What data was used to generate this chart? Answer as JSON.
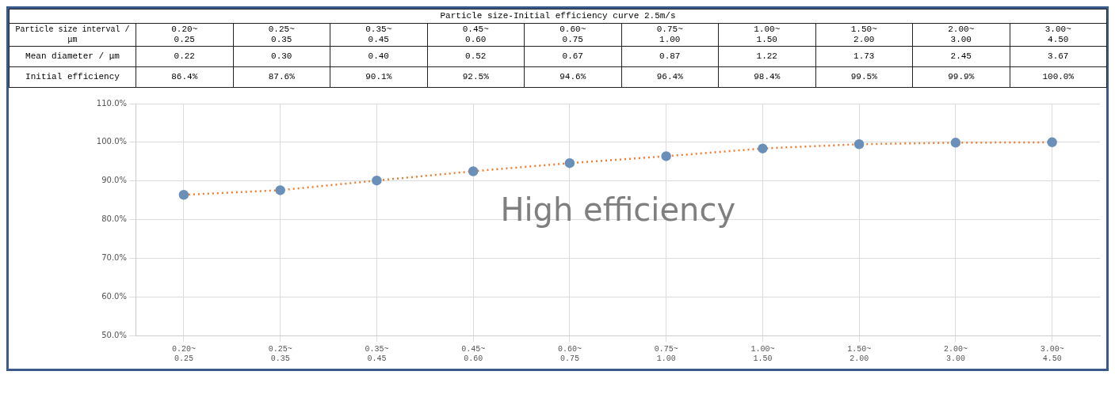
{
  "chart_data": {
    "type": "line",
    "title": "Particle size-Initial efficiency curve   2.5m/s",
    "categories": [
      "0.20~0.25",
      "0.25~0.35",
      "0.35~0.45",
      "0.45~0.60",
      "0.60~0.75",
      "0.75~1.00",
      "1.00~1.50",
      "1.50~2.00",
      "2.00~3.00",
      "3.00~4.50"
    ],
    "series": [
      {
        "color": "#ed7d31",
        "colors": [
          "#6a8fb8",
          "#6a8fb8",
          "#6a8fb8",
          "#6a8fb8",
          "#6a8fb8",
          "#6a8fb8",
          "#6a8fb8",
          "#6a8fb8",
          "#6a8fb8",
          "#6a8fb8"
        ],
        "values": [
          86.4,
          87.6,
          90.1,
          92.5,
          94.6,
          96.4,
          98.4,
          99.5,
          99.9,
          100.0
        ],
        "value_labels": [
          "86.4%",
          "87.6%",
          "90.1%",
          "92.5%",
          "94.6%",
          "96.4%",
          "98.4%",
          "99.5%",
          "99.9%",
          "100.0%"
        ]
      }
    ],
    "ylim": [
      50,
      110
    ],
    "yticks": [
      {
        "value": 50,
        "label": "50.0%"
      },
      {
        "value": 60,
        "label": "60.0%"
      },
      {
        "value": 70,
        "label": "70.0%"
      },
      {
        "value": 80,
        "label": "80.0%"
      },
      {
        "value": 90,
        "label": "90.0%"
      },
      {
        "value": 100,
        "label": "100.0%"
      },
      {
        "value": 110,
        "label": "110.0%"
      }
    ],
    "grid": true,
    "legend": false,
    "marker": "circle",
    "line_style": "dotted",
    "annotations": [
      "High efficiency",
      "Particle size interval / μm",
      "Mean diameter / μm",
      "Initial efficiency",
      "0.22",
      "0.30",
      "0.40",
      "0.52",
      "0.67",
      "0.87",
      "1.22",
      "1.73",
      "2.45",
      "3.67"
    ]
  }
}
